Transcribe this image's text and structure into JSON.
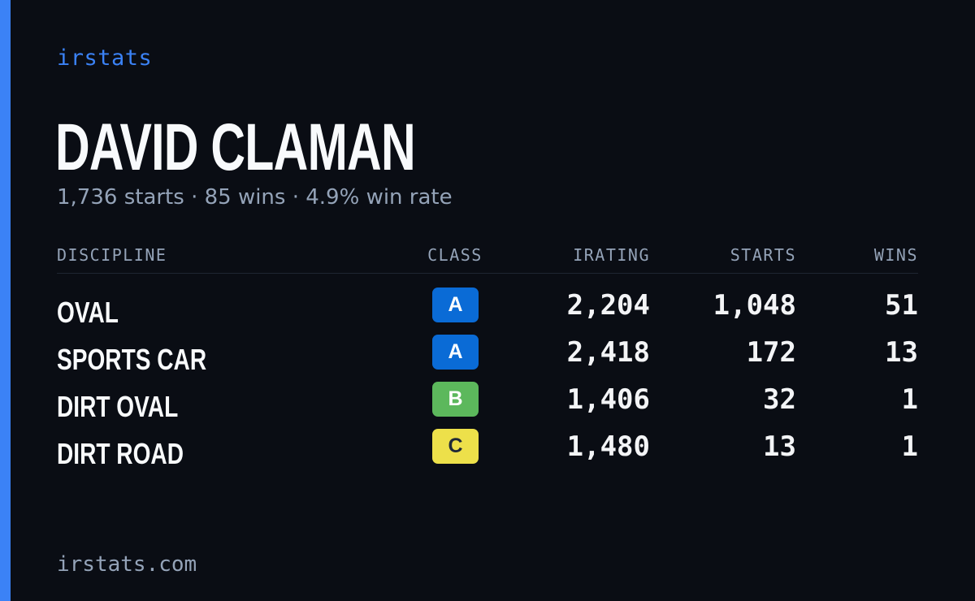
{
  "brand": "irstats",
  "driver": {
    "name": "DAVID CLAMAN",
    "summary": "1,736 starts · 85 wins · 4.9% win rate"
  },
  "table": {
    "headers": {
      "discipline": "DISCIPLINE",
      "class": "CLASS",
      "irating": "IRATING",
      "starts": "STARTS",
      "wins": "WINS"
    },
    "rows": [
      {
        "discipline": "OVAL",
        "class": "A",
        "irating": "2,204",
        "starts": "1,048",
        "wins": "51"
      },
      {
        "discipline": "SPORTS CAR",
        "class": "A",
        "irating": "2,418",
        "starts": "172",
        "wins": "13"
      },
      {
        "discipline": "DIRT OVAL",
        "class": "B",
        "irating": "1,406",
        "starts": "32",
        "wins": "1"
      },
      {
        "discipline": "DIRT ROAD",
        "class": "C",
        "irating": "1,480",
        "starts": "13",
        "wins": "1"
      }
    ]
  },
  "class_colors": {
    "A": {
      "bg": "#0a6bd6",
      "fg": "#ffffff"
    },
    "B": {
      "bg": "#5cb85c",
      "fg": "#ffffff"
    },
    "C": {
      "bg": "#ede04a",
      "fg": "#1f2937"
    }
  },
  "footer": "irstats.com",
  "accent_color": "#3b82f6"
}
